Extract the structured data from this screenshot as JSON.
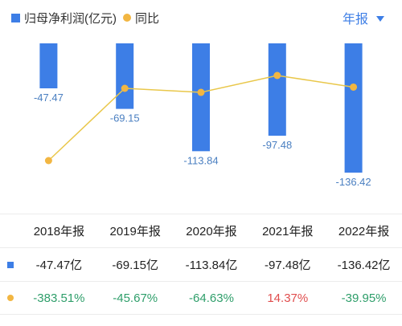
{
  "legend": {
    "bar_label": "归母净利润(亿元)",
    "line_label": "同比"
  },
  "period_selector": {
    "label": "年报"
  },
  "colors": {
    "bar": "#3d7ee6",
    "line": "#e9c74a",
    "dot": "#f2b642",
    "label": "#4a7fc1",
    "positive": "#e04d4d",
    "negative": "#2e9e6a"
  },
  "chart_data": {
    "type": "bar",
    "categories": [
      "2018年报",
      "2019年报",
      "2020年报",
      "2021年报",
      "2022年报"
    ],
    "series": [
      {
        "name": "归母净利润(亿元)",
        "type": "bar",
        "values": [
          -47.47,
          -69.15,
          -113.84,
          -97.48,
          -136.42
        ],
        "labels": [
          "-47.47",
          "-69.15",
          "-113.84",
          "-97.48",
          "-136.42"
        ]
      },
      {
        "name": "同比",
        "type": "line",
        "values": [
          -383.51,
          -45.67,
          -64.63,
          14.37,
          -39.95
        ]
      }
    ],
    "legend_position": "top-left"
  },
  "table": {
    "headers": [
      "2018年报",
      "2019年报",
      "2020年报",
      "2021年报",
      "2022年报"
    ],
    "profit_row": [
      "-47.47亿",
      "-69.15亿",
      "-113.84亿",
      "-97.48亿",
      "-136.42亿"
    ],
    "yoy_row": [
      "-383.51%",
      "-45.67%",
      "-64.63%",
      "14.37%",
      "-39.95%"
    ]
  }
}
